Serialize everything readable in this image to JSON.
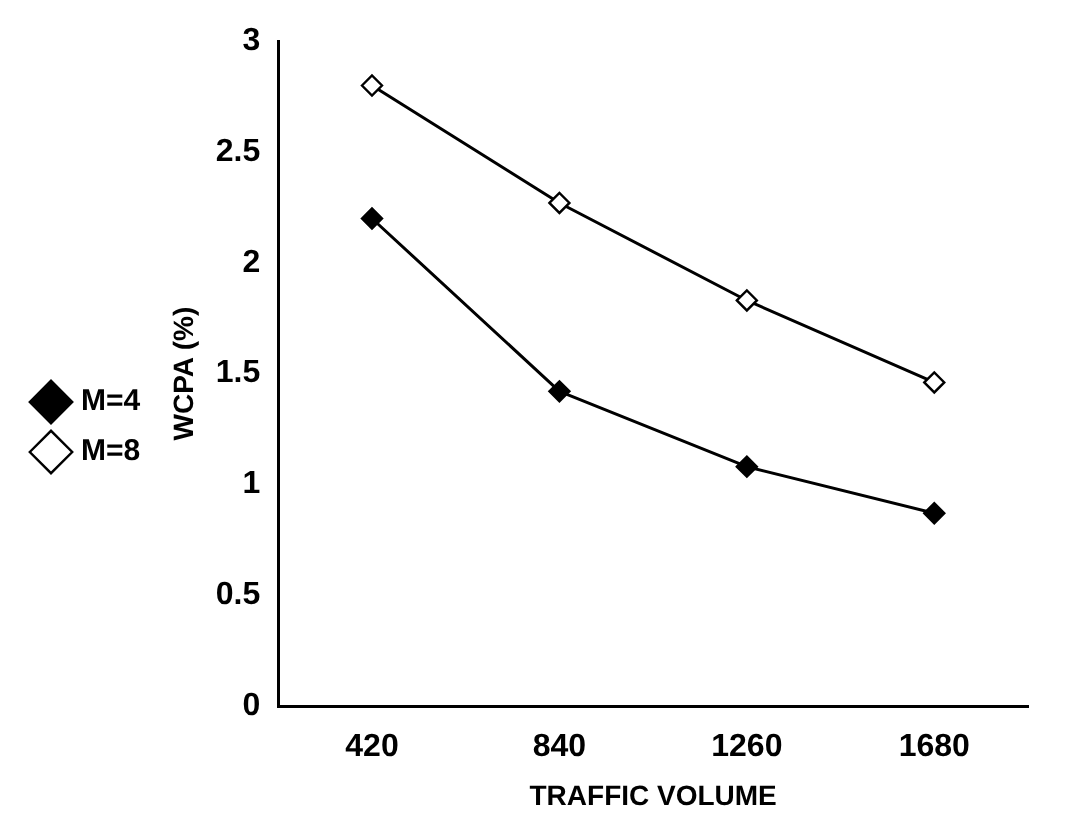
{
  "chart_data": {
    "type": "line",
    "xlabel": "TRAFFIC VOLUME",
    "ylabel": "WCPA (%)",
    "categories": [
      "420",
      "840",
      "1260",
      "1680"
    ],
    "series": [
      {
        "name": "M=4",
        "color": "#000000",
        "values": [
          2.2,
          1.42,
          1.08,
          0.87
        ]
      },
      {
        "name": "M=8",
        "color": "#000000",
        "values": [
          2.8,
          2.27,
          1.83,
          1.46
        ]
      }
    ],
    "ylim": [
      0,
      3
    ],
    "yticks": [
      0,
      0.5,
      1,
      1.5,
      2,
      2.5,
      3
    ],
    "grid": false,
    "legend": "left",
    "marker": "diamond",
    "line_style": "solid"
  }
}
